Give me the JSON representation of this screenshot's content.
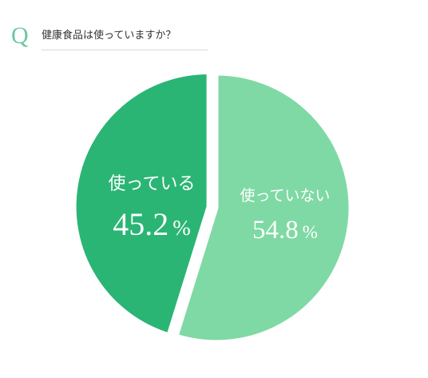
{
  "question": {
    "marker": "Q",
    "text": "健康食品は使っていますか？"
  },
  "colors": {
    "accent": "#6cc7a0",
    "slice_uses": "#2ab574",
    "slice_not_uses": "#7fd9a4",
    "label": "#ffffff"
  },
  "chart_data": {
    "type": "pie",
    "title": "健康食品は使っていますか？",
    "slices": [
      {
        "label": "使っている",
        "value": 45.2,
        "value_text": "45.2",
        "unit": "%",
        "color": "#2ab574",
        "exploded": true
      },
      {
        "label": "使っていない",
        "value": 54.8,
        "value_text": "54.8",
        "unit": "%",
        "color": "#7fd9a4",
        "exploded": false
      }
    ],
    "legend": "none",
    "start_angle": "top",
    "direction": "clockwise-for-second-slice"
  }
}
